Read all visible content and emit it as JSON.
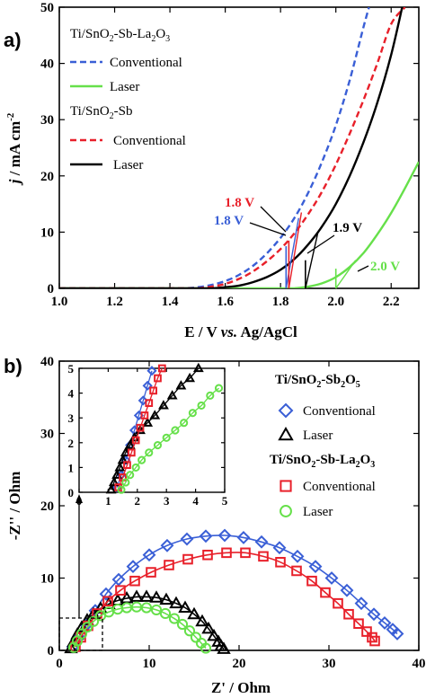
{
  "colors": {
    "blue": "#3a5fd6",
    "red": "#e8202a",
    "green": "#66e04a",
    "black": "#000000"
  },
  "panel_a": {
    "label": "a)",
    "legend": {
      "group1_prefix": "Ti/SnO",
      "group1_sub1": "2",
      "group1_mid": "-Sb-La",
      "group1_sub2": "2",
      "group1_mid2": "O",
      "group1_sub3": "3",
      "group2_prefix": "Ti/SnO",
      "group2_sub1": "2",
      "group2_mid": "-Sb",
      "conventional": "Conventional",
      "laser": "Laser"
    },
    "ylabel_j": "j",
    "ylabel_rest": " / mA cm",
    "ylabel_sup": "-2",
    "xlabel_main": "E / V ",
    "xlabel_vs": "vs.",
    "xlabel_end": " Ag/AgCl",
    "annotations": {
      "blue_18": "1.8 V",
      "red_18": "1.8 V",
      "black_19": "1.9 V",
      "green_20": "2.0 V"
    }
  },
  "panel_b": {
    "label": "b)",
    "legend": {
      "group1_prefix": "Ti/SnO",
      "group1_sub1": "2",
      "group1_mid": "-Sb",
      "group1_sub2": "2",
      "group1_mid2": "O",
      "group1_sub3": "5",
      "group2_prefix": "Ti/SnO",
      "group2_sub1": "2",
      "group2_mid": "-Sb-La",
      "group2_sub2": "2",
      "group2_mid2": "O",
      "group2_sub3": "3",
      "conventional": "Conventional",
      "laser": "Laser"
    },
    "ylabel": "-Z'' / Ohm",
    "xlabel": "Z' / Ohm"
  },
  "chart_data": [
    {
      "type": "line",
      "xlabel": "E / V vs. Ag/AgCl",
      "ylabel": "j / mA cm-2",
      "xlim": [
        1.0,
        2.3
      ],
      "ylim": [
        0,
        50
      ],
      "xticks": [
        1.0,
        1.2,
        1.4,
        1.6,
        1.8,
        2.0,
        2.2
      ],
      "yticks": [
        0,
        10,
        20,
        30,
        40,
        50
      ],
      "series": [
        {
          "name": "Ti/SnO2-Sb-La2O3 Conventional",
          "style": "dashed",
          "color": "blue",
          "x": [
            1.45,
            1.5,
            1.55,
            1.6,
            1.65,
            1.7,
            1.75,
            1.8,
            1.85,
            1.9,
            1.95,
            2.0,
            2.05,
            2.1,
            2.12
          ],
          "y": [
            0,
            0.2,
            0.6,
            1.3,
            2.4,
            4.0,
            6.2,
            9.0,
            12.5,
            17.0,
            22.5,
            29.0,
            37.0,
            46.5,
            50
          ]
        },
        {
          "name": "Ti/SnO2-Sb-La2O3 Laser",
          "style": "solid",
          "color": "green",
          "x": [
            1.85,
            1.9,
            1.95,
            2.0,
            2.05,
            2.1,
            2.15,
            2.2,
            2.25,
            2.3
          ],
          "y": [
            0,
            0.3,
            0.9,
            2.0,
            3.8,
            6.3,
            9.6,
            13.4,
            17.8,
            22.5
          ]
        },
        {
          "name": "Ti/SnO2-Sb Conventional",
          "style": "dashed",
          "color": "red",
          "x": [
            1.5,
            1.55,
            1.6,
            1.65,
            1.7,
            1.75,
            1.8,
            1.85,
            1.9,
            1.95,
            2.0,
            2.05,
            2.1,
            2.15,
            2.2,
            2.25
          ],
          "y": [
            0,
            0.3,
            0.8,
            1.7,
            3.0,
            4.8,
            7.0,
            9.8,
            13.2,
            17.2,
            22.0,
            27.5,
            33.5,
            40.0,
            47.0,
            50
          ]
        },
        {
          "name": "Ti/SnO2-Sb Laser",
          "style": "solid",
          "color": "black",
          "x": [
            1.55,
            1.6,
            1.65,
            1.7,
            1.75,
            1.8,
            1.85,
            1.9,
            1.95,
            2.0,
            2.05,
            2.1,
            2.15,
            2.2,
            2.24
          ],
          "y": [
            0,
            0.2,
            0.5,
            1.1,
            2.0,
            3.3,
            5.2,
            7.8,
            11.0,
            15.0,
            20.0,
            26.0,
            33.0,
            41.5,
            50
          ]
        }
      ],
      "onset_markers": [
        {
          "x": 1.82,
          "color": "blue",
          "label": "1.8 V"
        },
        {
          "x": 1.83,
          "color": "red",
          "label": "1.8 V"
        },
        {
          "x": 1.89,
          "color": "black",
          "label": "1.9 V"
        },
        {
          "x": 2.0,
          "color": "green",
          "label": "2.0 V"
        }
      ]
    },
    {
      "type": "scatter",
      "xlabel": "Z' / Ohm",
      "ylabel": "-Z'' / Ohm",
      "xlim": [
        0,
        40
      ],
      "ylim": [
        0,
        40
      ],
      "xticks": [
        0,
        10,
        20,
        30,
        40
      ],
      "yticks": [
        0,
        10,
        20,
        30,
        40
      ],
      "series": [
        {
          "name": "Ti/SnO2-Sb2O5 Conventional",
          "marker": "diamond",
          "color": "blue",
          "x": [
            1.5,
            2.2,
            3.0,
            4.0,
            5.2,
            6.6,
            8.2,
            10.0,
            12.0,
            14.2,
            16.3,
            18.4,
            20.5,
            22.5,
            24.5,
            26.5,
            28.5,
            30.3,
            32.0,
            33.6,
            35.0,
            36.2,
            37.1,
            37.6
          ],
          "y": [
            0.5,
            1.8,
            3.5,
            5.5,
            7.8,
            9.8,
            11.6,
            13.2,
            14.5,
            15.4,
            15.8,
            15.9,
            15.6,
            15.0,
            14.2,
            13.0,
            11.6,
            10.0,
            8.3,
            6.5,
            5.0,
            3.8,
            2.9,
            2.3
          ]
        },
        {
          "name": "Ti/SnO2-Sb2O5 Laser",
          "marker": "triangle",
          "color": "black",
          "x": [
            1.3,
            1.6,
            2.0,
            2.5,
            3.1,
            3.8,
            4.6,
            5.5,
            6.5,
            7.5,
            8.6,
            9.7,
            10.8,
            11.9,
            13.0,
            14.0,
            15.0,
            15.9,
            16.6,
            17.2,
            17.7,
            18.0,
            18.3
          ],
          "y": [
            0.3,
            1.2,
            2.2,
            3.2,
            4.2,
            5.0,
            5.8,
            6.4,
            6.9,
            7.2,
            7.4,
            7.4,
            7.3,
            7.0,
            6.5,
            5.9,
            5.0,
            4.0,
            3.0,
            2.0,
            1.2,
            0.6,
            0.2
          ]
        },
        {
          "name": "Ti/SnO2-Sb-La2O3 Conventional",
          "marker": "square",
          "color": "red",
          "x": [
            1.8,
            2.4,
            3.2,
            4.2,
            5.4,
            6.8,
            8.4,
            10.2,
            12.2,
            14.3,
            16.5,
            18.6,
            20.7,
            22.7,
            24.6,
            26.4,
            28.1,
            29.6,
            31.0,
            32.2,
            33.3,
            34.2,
            34.8,
            35.1
          ],
          "y": [
            0.5,
            1.8,
            3.4,
            5.1,
            6.8,
            8.3,
            9.6,
            10.8,
            11.8,
            12.6,
            13.2,
            13.5,
            13.5,
            13.0,
            12.2,
            11.0,
            9.6,
            8.0,
            6.5,
            5.0,
            3.7,
            2.6,
            1.8,
            1.3
          ]
        },
        {
          "name": "Ti/SnO2-Sb-La2O3 Laser",
          "marker": "circle",
          "color": "green",
          "x": [
            1.6,
            2.0,
            2.5,
            3.1,
            3.8,
            4.6,
            5.5,
            6.5,
            7.5,
            8.6,
            9.7,
            10.8,
            11.8,
            12.8,
            13.7,
            14.5,
            15.2,
            15.8,
            16.3
          ],
          "y": [
            0.4,
            1.3,
            2.3,
            3.2,
            4.0,
            4.8,
            5.3,
            5.7,
            5.9,
            6.0,
            5.9,
            5.6,
            5.1,
            4.4,
            3.6,
            2.7,
            1.8,
            1.0,
            0.3
          ]
        }
      ],
      "inset": {
        "xlim": [
          0,
          5
        ],
        "ylim": [
          0,
          5
        ],
        "xticks": [
          0,
          1,
          2,
          3,
          4,
          5
        ],
        "yticks": [
          0,
          1,
          2,
          3,
          4,
          5
        ],
        "series": [
          {
            "name": "Ti/SnO2-Sb2O5 Conventional",
            "marker": "diamond",
            "color": "blue",
            "x": [
              1.3,
              1.45,
              1.6,
              1.75,
              1.9,
              2.05,
              2.2,
              2.35,
              2.5
            ],
            "y": [
              0.2,
              0.7,
              1.3,
              1.9,
              2.5,
              3.1,
              3.7,
              4.3,
              4.9
            ]
          },
          {
            "name": "Ti/SnO2-Sb2O5 Laser",
            "marker": "triangle",
            "color": "black",
            "x": [
              1.1,
              1.2,
              1.3,
              1.4,
              1.5,
              1.6,
              1.75,
              1.9,
              2.1,
              2.35,
              2.6,
              2.9,
              3.2,
              3.5,
              3.8,
              4.1
            ],
            "y": [
              0.1,
              0.4,
              0.7,
              1.0,
              1.3,
              1.6,
              1.9,
              2.2,
              2.5,
              2.8,
              3.1,
              3.5,
              3.9,
              4.3,
              4.6,
              5.0
            ]
          },
          {
            "name": "Ti/SnO2-Sb-La2O3 Conventional",
            "marker": "square",
            "color": "red",
            "x": [
              1.35,
              1.5,
              1.65,
              1.8,
              1.95,
              2.1,
              2.25,
              2.4,
              2.55,
              2.7,
              2.85
            ],
            "y": [
              0.2,
              0.6,
              1.1,
              1.6,
              2.1,
              2.6,
              3.1,
              3.6,
              4.1,
              4.6,
              5.0
            ]
          },
          {
            "name": "Ti/SnO2-Sb-La2O3 Laser",
            "marker": "circle",
            "color": "green",
            "x": [
              1.45,
              1.6,
              1.75,
              1.95,
              2.15,
              2.4,
              2.7,
              3.0,
              3.3,
              3.6,
              3.9,
              4.2,
              4.5,
              4.8
            ],
            "y": [
              0.1,
              0.4,
              0.7,
              1.0,
              1.3,
              1.6,
              1.9,
              2.2,
              2.5,
              2.8,
              3.2,
              3.5,
              3.9,
              4.2
            ]
          }
        ]
      }
    }
  ]
}
